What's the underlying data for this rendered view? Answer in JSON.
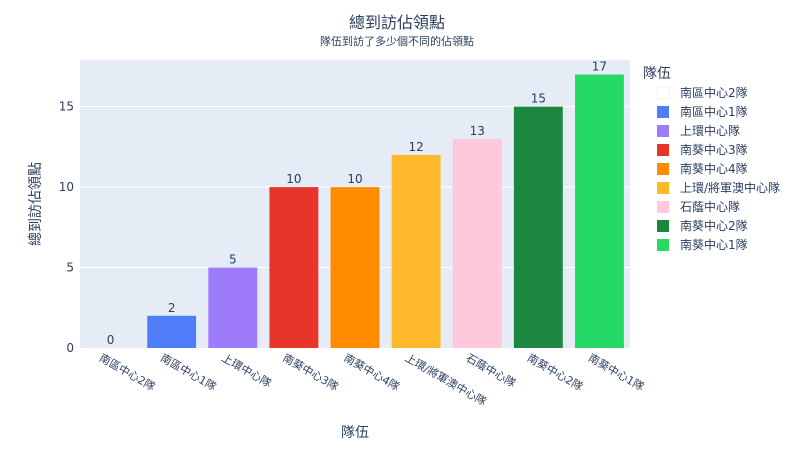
{
  "chart_data": {
    "type": "bar",
    "title": "總到訪佔領點",
    "subtitle": "隊伍到訪了多少個不同的佔領點",
    "xlabel": "隊伍",
    "ylabel": "總到訪佔領點",
    "ylim": [
      0,
      17.9
    ],
    "y_ticks": [
      0,
      5,
      10,
      15
    ],
    "grid": true,
    "legend_title": "隊伍",
    "legend_placement": "right",
    "categories": [
      "南區中心2隊",
      "南區中心1隊",
      "上環中心隊",
      "南葵中心3隊",
      "南葵中心4隊",
      "上環/將軍澳中心隊",
      "石蔭中心隊",
      "南葵中心2隊",
      "南葵中心1隊"
    ],
    "values": [
      0,
      2,
      5,
      10,
      10,
      12,
      13,
      15,
      17
    ],
    "colors": [
      "#ffffff",
      "#4f7df7",
      "#9d7bfb",
      "#e8352a",
      "#ff8c00",
      "#ffb829",
      "#ffc8dc",
      "#1b873f",
      "#26d964"
    ],
    "plot_bg": "#e5ecf6",
    "text_color": "#2a3f5f"
  }
}
